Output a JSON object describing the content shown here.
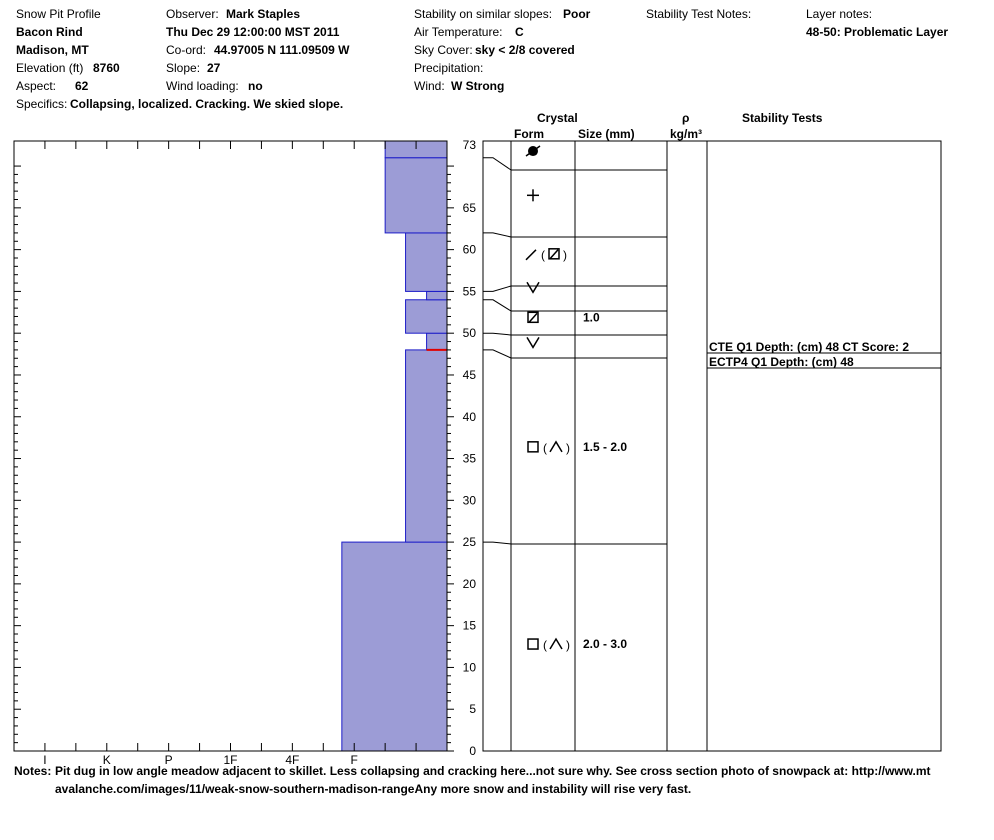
{
  "header": {
    "title": "Snow Pit Profile",
    "location": "Bacon Rind",
    "region": "Madison, MT",
    "elevation_label": "Elevation (ft)",
    "elevation_value": "8760",
    "aspect_label": "Aspect:",
    "aspect_value": "62",
    "specifics_label": "Specifics:",
    "specifics_value": "Collapsing, localized. Cracking. We skied slope.",
    "observer_label": "Observer:",
    "observer_value": "Mark Staples",
    "datetime": "Thu Dec 29 12:00:00 MST 2011",
    "coord_label": "Co-ord:",
    "coord_value": "44.97005 N 111.09509 W",
    "slope_label": "Slope:",
    "slope_value": "27",
    "wind_loading_label": "Wind loading:",
    "wind_loading_value": "no",
    "stability_label": "Stability on similar slopes:",
    "stability_value": "Poor",
    "air_temp_label": "Air Temperature:",
    "air_temp_value": "C",
    "sky_label": "Sky Cover:",
    "sky_value": "sky < 2/8 covered",
    "precip_label": "Precipitation:",
    "precip_value": "",
    "wind_label": "Wind:",
    "wind_value": "W Strong",
    "stability_notes_label": "Stability Test Notes:",
    "layer_notes_label": "Layer notes:",
    "layer_notes_value": "48-50: Problematic Layer"
  },
  "columns": {
    "crystal": "Crystal",
    "form": "Form",
    "size": "Size (mm)",
    "rho": "ρ",
    "density_unit": "kg/m³",
    "stability_tests": "Stability Tests"
  },
  "chart_data": {
    "type": "bar",
    "ylim": [
      0,
      73
    ],
    "y_ticks": [
      0,
      5,
      10,
      15,
      20,
      25,
      30,
      35,
      40,
      45,
      50,
      55,
      60,
      65
    ],
    "y_top_label": "73",
    "hardness_scale": [
      "I",
      "K",
      "P",
      "1F",
      "4F",
      "F"
    ],
    "hardness_max": 7,
    "layers": [
      {
        "bottom": 0,
        "top": 25,
        "hardness": 1.7
      },
      {
        "bottom": 25,
        "top": 48,
        "hardness": 0.67
      },
      {
        "bottom": 48,
        "top": 50,
        "hardness": 0.33
      },
      {
        "bottom": 50,
        "top": 54,
        "hardness": 0.67
      },
      {
        "bottom": 54,
        "top": 55,
        "hardness": 0.33
      },
      {
        "bottom": 55,
        "top": 62,
        "hardness": 0.67
      },
      {
        "bottom": 62,
        "top": 71,
        "hardness": 1.0
      },
      {
        "bottom": 71,
        "top": 73,
        "hardness": 1.0
      }
    ],
    "problem_layer_line": 48,
    "crystals": [
      {
        "y": 71.8,
        "size": ""
      },
      {
        "y": 66.5,
        "size": ""
      },
      {
        "y": 59.5,
        "size": ""
      },
      {
        "y": 55.5,
        "size": ""
      },
      {
        "y": 51.9,
        "size": "1.0"
      },
      {
        "y": 48.9,
        "size": ""
      },
      {
        "y": 36.4,
        "size": "1.5 - 2.0"
      },
      {
        "y": 12.8,
        "size": "2.0 - 3.0"
      }
    ],
    "stability_tests": [
      {
        "label": "CTE Q1 Depth: (cm) 48 CT Score: 2"
      },
      {
        "label": "ECTP4 Q1 Depth: (cm) 48"
      }
    ]
  },
  "notes": {
    "label": "Notes:",
    "line1": "Pit dug in low angle meadow adjacent to skillet.  Less collapsing and cracking here...not sure why.  See cross section photo of snowpack at: http://www.mt",
    "line2": "avalanche.com/images/11/weak-snow-southern-madison-rangeAny more snow and instability will rise very fast."
  }
}
